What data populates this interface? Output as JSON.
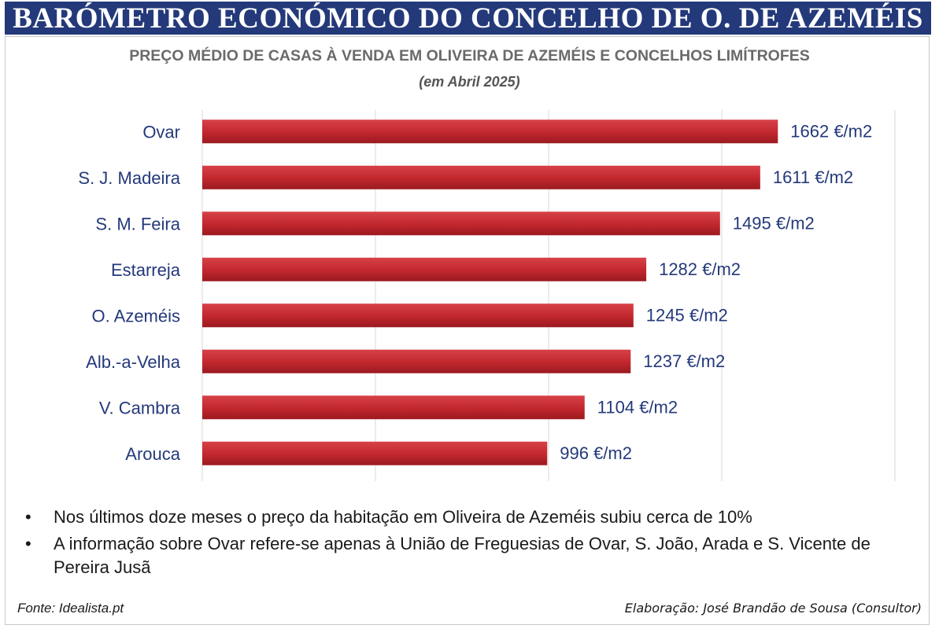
{
  "banner": {
    "title": "BARÓMETRO ECONÓMICO DO CONCELHO DE O. DE AZEMÉIS"
  },
  "chart_data": {
    "type": "bar",
    "orientation": "horizontal",
    "title": "PREÇO MÉDIO DE CASAS À VENDA EM OLIVEIRA DE AZEMÉIS E CONCELHOS LIMÍTROFES",
    "subtitle": "(em Abril 2025)",
    "categories": [
      "Ovar",
      "S. J. Madeira",
      "S. M. Feira",
      "Estarreja",
      "O. Azeméis",
      "Alb.-a-Velha",
      "V. Cambra",
      "Arouca"
    ],
    "values": [
      1662,
      1611,
      1495,
      1282,
      1245,
      1237,
      1104,
      996
    ],
    "value_unit": "€/m2",
    "xlim": [
      0,
      2000
    ],
    "grid": true,
    "bar_color": "#c1272d",
    "label_color": "#24397a"
  },
  "notes": [
    "Nos últimos doze meses o preço da habitação em Oliveira de Azeméis subiu cerca de 10%",
    "A informação sobre Ovar refere-se apenas à União de Freguesias de Ovar, S. João, Arada e S. Vicente de Pereira Jusã"
  ],
  "footer": {
    "source": "Fonte: Idealista.pt",
    "author": "Elaboração: José Brandão de Sousa (Consultor)"
  }
}
